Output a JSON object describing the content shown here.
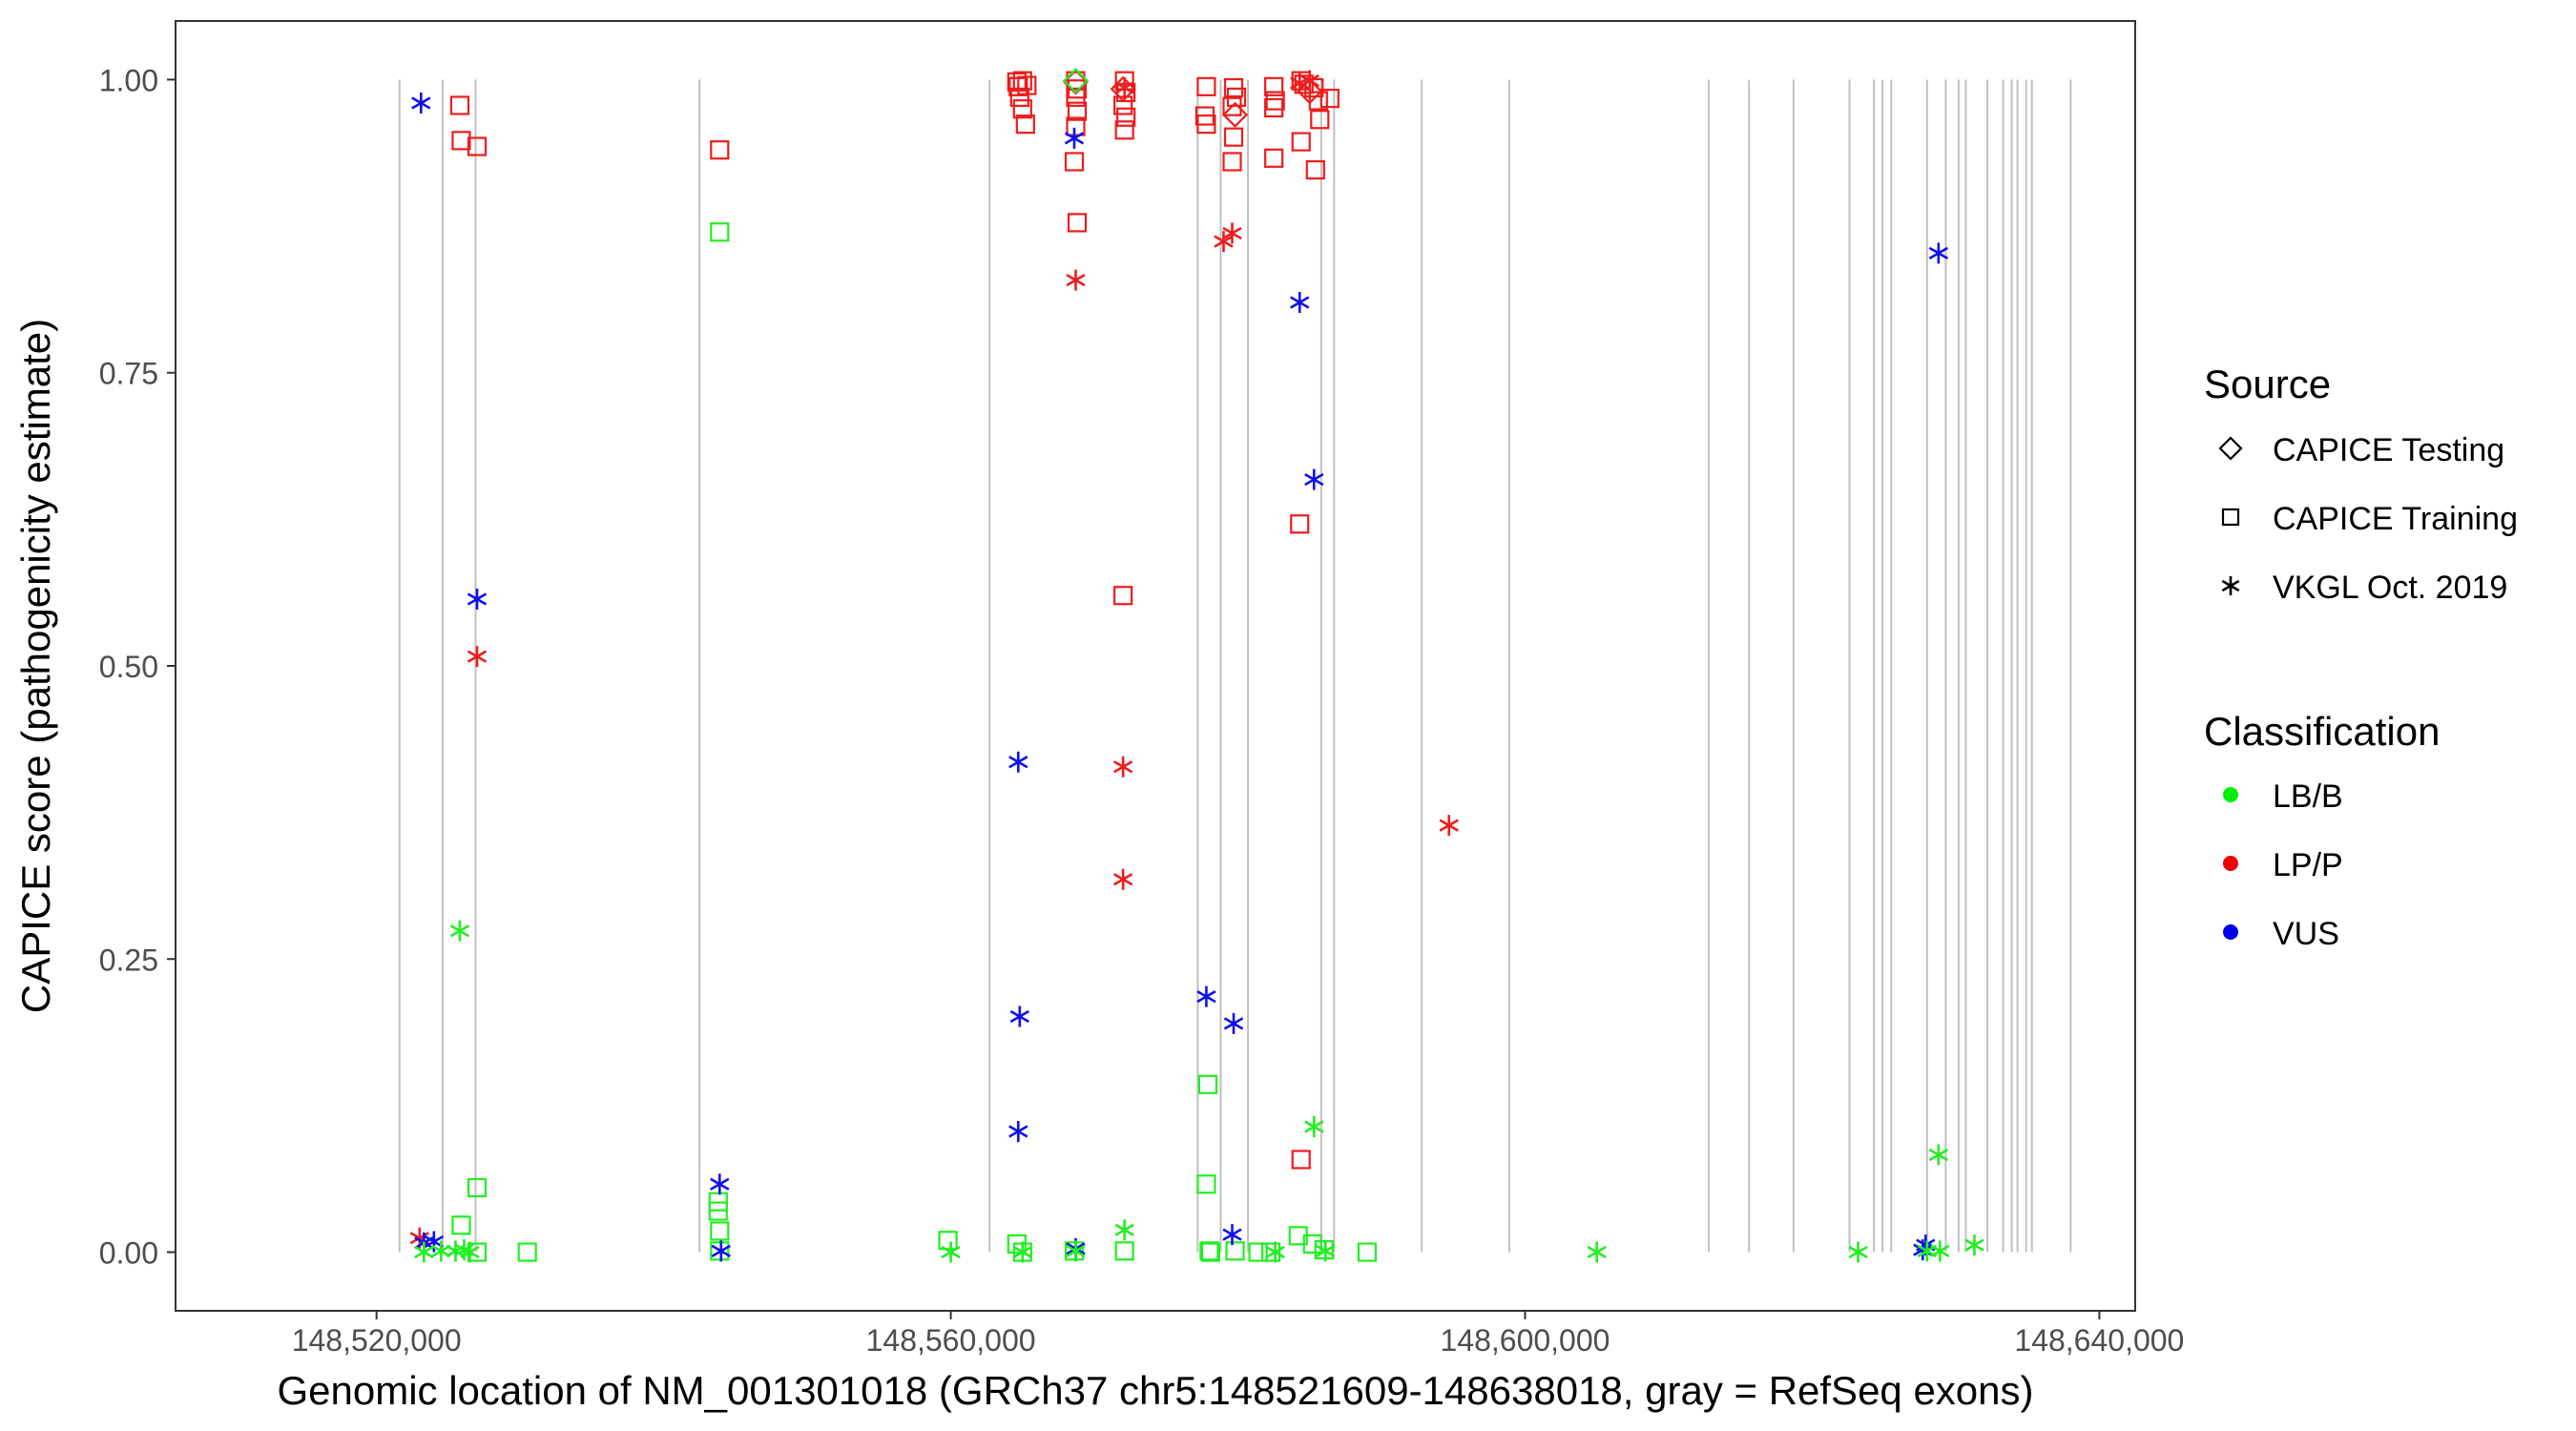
{
  "chart_data": {
    "type": "scatter",
    "title": "",
    "xlabel": "Genomic location of NM_001301018 (GRCh37 chr5:148521609-148638018, gray = RefSeq exons)",
    "ylabel": "CAPICE score (pathogenicity estimate)",
    "xlim": [
      148506000,
      148642500
    ],
    "ylim": [
      -0.05,
      1.05
    ],
    "x_ticks": [
      148520000,
      148560000,
      148600000,
      148640000
    ],
    "x_tick_labels": [
      "148,520,000",
      "148,560,000",
      "148,600,000",
      "148,640,000"
    ],
    "y_ticks": [
      0,
      0.25,
      0.5,
      0.75,
      1
    ],
    "y_tick_labels": [
      "0.00",
      "0.25",
      "0.50",
      "0.75",
      "1.00"
    ],
    "grid": false,
    "exon_positions": [
      148521600,
      148524600,
      148526900,
      148542500,
      148562700,
      148577200,
      148578800,
      148580700,
      148585800,
      148586700,
      148592800,
      148598900,
      148612800,
      148615600,
      148618700,
      148622600,
      148624300,
      148624900,
      148625500,
      148628000,
      148629300,
      148630200,
      148630700,
      148632200,
      148633300,
      148633900,
      148634300,
      148634900,
      148635300,
      148638000
    ],
    "legend": {
      "placement": "right",
      "source_title": "Source",
      "source_items": [
        {
          "label": "CAPICE Testing",
          "shape": "diamond"
        },
        {
          "label": "CAPICE Training",
          "shape": "square"
        },
        {
          "label": "VKGL Oct. 2019",
          "shape": "asterisk"
        }
      ],
      "class_title": "Classification",
      "class_items": [
        {
          "label": "LB/B",
          "color": "#00ee00"
        },
        {
          "label": "LP/P",
          "color": "#ee0000"
        },
        {
          "label": "VUS",
          "color": "#0000ee"
        }
      ]
    },
    "colors": {
      "LB/B": "#22ee22",
      "LP/P": "#ee1c1c",
      "VUS": "#1010ee"
    },
    "series": [
      {
        "source": "CAPICE Training",
        "class": "LP/P",
        "points": [
          [
            148525800,
            0.978
          ],
          [
            148525900,
            0.948
          ],
          [
            148527000,
            0.943
          ],
          [
            148543900,
            0.94
          ],
          [
            148564600,
            0.998
          ],
          [
            148564700,
            0.994
          ],
          [
            148565000,
            0.999
          ],
          [
            148565300,
            0.995
          ],
          [
            148564800,
            0.985
          ],
          [
            148565000,
            0.975
          ],
          [
            148565200,
            0.962
          ],
          [
            148568700,
            0.999
          ],
          [
            148568800,
            0.992
          ],
          [
            148568700,
            0.985
          ],
          [
            148568800,
            0.973
          ],
          [
            148568700,
            0.96
          ],
          [
            148568600,
            0.93
          ],
          [
            148568800,
            0.878
          ],
          [
            148572100,
            0.999
          ],
          [
            148572200,
            0.989
          ],
          [
            148572000,
            0.978
          ],
          [
            148572200,
            0.968
          ],
          [
            148572100,
            0.957
          ],
          [
            148572000,
            0.56
          ],
          [
            148577800,
            0.994
          ],
          [
            148577700,
            0.969
          ],
          [
            148577800,
            0.962
          ],
          [
            148579700,
            0.993
          ],
          [
            148579900,
            0.985
          ],
          [
            148579600,
            0.977
          ],
          [
            148579700,
            0.951
          ],
          [
            148579600,
            0.93
          ],
          [
            148582500,
            0.994
          ],
          [
            148582600,
            0.982
          ],
          [
            148582500,
            0.976
          ],
          [
            148582500,
            0.933
          ],
          [
            148584400,
            0.999
          ],
          [
            148584600,
            0.996
          ],
          [
            148584400,
            0.947
          ],
          [
            148584300,
            0.621
          ],
          [
            148584400,
            0.079
          ],
          [
            148585300,
            0.993
          ],
          [
            148585600,
            0.982
          ],
          [
            148585700,
            0.966
          ],
          [
            148585400,
            0.923
          ],
          [
            148586400,
            0.984
          ]
        ]
      },
      {
        "source": "CAPICE Training",
        "class": "LB/B",
        "points": [
          [
            148543900,
            0.87
          ],
          [
            148543800,
            0.043
          ],
          [
            148543800,
            0.035
          ],
          [
            148543900,
            0.018
          ],
          [
            148543900,
            0.001
          ],
          [
            148525900,
            0.023
          ],
          [
            148527000,
            0.055
          ],
          [
            148527000,
            0.0
          ],
          [
            148530500,
            0.0
          ],
          [
            148559800,
            0.01
          ],
          [
            148564600,
            0.007
          ],
          [
            148565000,
            0.0
          ],
          [
            148568600,
            0.001
          ],
          [
            148572100,
            0.001
          ],
          [
            148577900,
            0.143
          ],
          [
            148577800,
            0.058
          ],
          [
            148578000,
            0.001
          ],
          [
            148578100,
            0.0
          ],
          [
            148579800,
            0.001
          ],
          [
            148581400,
            0.0
          ],
          [
            148582300,
            0.0
          ],
          [
            148584200,
            0.014
          ],
          [
            148585200,
            0.007
          ],
          [
            148586000,
            0.002
          ],
          [
            148589000,
            0.0
          ]
        ]
      },
      {
        "source": "CAPICE Testing",
        "class": "LP/P",
        "points": [
          [
            148568700,
            0.998
          ],
          [
            148572000,
            0.992
          ],
          [
            148579800,
            0.97
          ],
          [
            148585000,
            0.99
          ]
        ]
      },
      {
        "source": "CAPICE Testing",
        "class": "LB/B",
        "points": [
          [
            148568700,
            0.999
          ]
        ]
      },
      {
        "source": "VKGL Oct. 2019",
        "class": "LP/P",
        "points": [
          [
            148527000,
            0.508
          ],
          [
            148523000,
            0.012
          ],
          [
            148568700,
            0.829
          ],
          [
            148572000,
            0.414
          ],
          [
            148572000,
            0.318
          ],
          [
            148572100,
            0.993
          ],
          [
            148579000,
            0.862
          ],
          [
            148579600,
            0.869
          ],
          [
            148584300,
            0.997
          ],
          [
            148585000,
            0.999
          ],
          [
            148594700,
            0.364
          ]
        ]
      },
      {
        "source": "VKGL Oct. 2019",
        "class": "VUS",
        "points": [
          [
            148523100,
            0.98
          ],
          [
            148527000,
            0.557
          ],
          [
            148523300,
            0.008
          ],
          [
            148524000,
            0.009
          ],
          [
            148543900,
            0.058
          ],
          [
            148544000,
            0.001
          ],
          [
            148564700,
            0.418
          ],
          [
            148564800,
            0.201
          ],
          [
            148564700,
            0.103
          ],
          [
            148568600,
            0.95
          ],
          [
            148568700,
            0.003
          ],
          [
            148577800,
            0.218
          ],
          [
            148579700,
            0.195
          ],
          [
            148579600,
            0.015
          ],
          [
            148584300,
            0.81
          ],
          [
            148585300,
            0.659
          ],
          [
            148627700,
            0.002
          ],
          [
            148627900,
            0.006
          ],
          [
            148628800,
            0.852
          ]
        ]
      },
      {
        "source": "VKGL Oct. 2019",
        "class": "LB/B",
        "points": [
          [
            148525800,
            0.274
          ],
          [
            148523300,
            0.0
          ],
          [
            148524500,
            0.001
          ],
          [
            148525500,
            0.001
          ],
          [
            148526100,
            0.002
          ],
          [
            148526500,
            0.0
          ],
          [
            148560000,
            0.0
          ],
          [
            148565000,
            0.0
          ],
          [
            148568700,
            0.001
          ],
          [
            148572100,
            0.019
          ],
          [
            148582600,
            0.0
          ],
          [
            148585300,
            0.107
          ],
          [
            148586100,
            0.001
          ],
          [
            148605000,
            0.0
          ],
          [
            148623200,
            0.0
          ],
          [
            148628000,
            0.001
          ],
          [
            148628800,
            0.083
          ],
          [
            148628900,
            0.001
          ],
          [
            148631300,
            0.006
          ]
        ]
      }
    ]
  }
}
